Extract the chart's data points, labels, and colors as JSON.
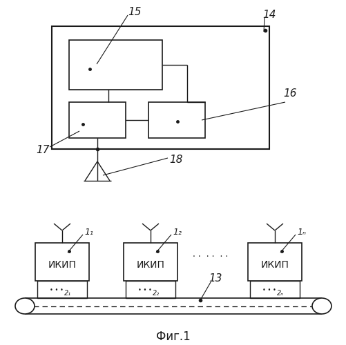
{
  "bg_color": "#ffffff",
  "line_color": "#1a1a1a",
  "fig_caption": "Фиг.1",
  "label_14": "14",
  "label_15": "15",
  "label_16": "16",
  "label_17": "17",
  "label_18": "18",
  "label_1_1": "1₁",
  "label_1_2": "1₂",
  "label_1_n": "1ₙ",
  "label_2_1": "2₁",
  "label_2_2": "2₂",
  "label_2_n": "2ₙ",
  "label_13": "13",
  "ikip_text": "ИКИП",
  "dots_mid": ". .  . .  . ."
}
